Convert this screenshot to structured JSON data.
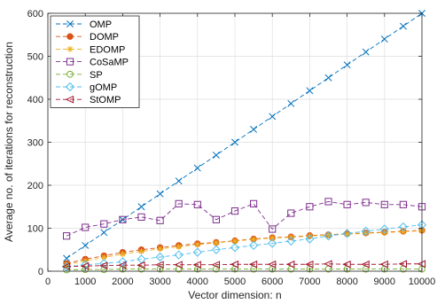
{
  "chart_data": {
    "type": "line",
    "xlabel": "Vector dimension: n",
    "ylabel": "Average no. of iterations for reconstruction",
    "xlim": [
      0,
      10000
    ],
    "ylim": [
      0,
      600
    ],
    "x_ticks": [
      0,
      1000,
      2000,
      3000,
      4000,
      5000,
      6000,
      7000,
      8000,
      9000,
      10000
    ],
    "y_ticks": [
      0,
      100,
      200,
      300,
      400,
      500,
      600
    ],
    "grid": true,
    "legend_position": "top-left",
    "x": [
      500,
      1000,
      1500,
      2000,
      2500,
      3000,
      3500,
      4000,
      4500,
      5000,
      5500,
      6000,
      6500,
      7000,
      7500,
      8000,
      8500,
      9000,
      9500,
      10000
    ],
    "series": [
      {
        "name": "OMP",
        "color": "#0072BD",
        "marker": "x",
        "values": [
          30,
          60,
          90,
          120,
          150,
          180,
          210,
          240,
          270,
          300,
          330,
          360,
          390,
          420,
          450,
          480,
          510,
          540,
          570,
          600
        ]
      },
      {
        "name": "DOMP",
        "color": "#D95319",
        "marker": "circle",
        "values": [
          18,
          28,
          36,
          44,
          50,
          55,
          60,
          64,
          67,
          71,
          75,
          78,
          80,
          83,
          85,
          87,
          89,
          91,
          93,
          95
        ]
      },
      {
        "name": "EDOMP",
        "color": "#EDB120",
        "marker": "star",
        "values": [
          15,
          24,
          32,
          40,
          46,
          52,
          57,
          62,
          66,
          70,
          74,
          77,
          79,
          82,
          84,
          86,
          88,
          90,
          92,
          94
        ]
      },
      {
        "name": "CoSaMP",
        "color": "#7E2F8E",
        "marker": "square",
        "values": [
          82,
          102,
          110,
          120,
          126,
          118,
          157,
          155,
          120,
          140,
          157,
          98,
          135,
          150,
          162,
          155,
          160,
          155,
          155,
          150
        ]
      },
      {
        "name": "SP",
        "color": "#77AC30",
        "marker": "circle-open",
        "values": [
          3,
          4,
          4,
          5,
          5,
          5,
          5,
          5,
          5,
          5,
          5,
          5,
          5,
          5,
          5,
          5,
          5,
          5,
          5,
          5
        ]
      },
      {
        "name": "gOMP",
        "color": "#4DBEEE",
        "marker": "diamond",
        "values": [
          10,
          15,
          18,
          22,
          28,
          33,
          38,
          44,
          50,
          55,
          60,
          65,
          70,
          75,
          82,
          88,
          93,
          98,
          103,
          108
        ]
      },
      {
        "name": "StOMP",
        "color": "#A2142F",
        "marker": "triangle-left",
        "values": [
          11,
          12,
          13,
          14,
          14,
          15,
          15,
          15,
          15,
          16,
          16,
          16,
          16,
          16,
          17,
          16,
          16,
          16,
          17,
          17
        ]
      }
    ]
  }
}
